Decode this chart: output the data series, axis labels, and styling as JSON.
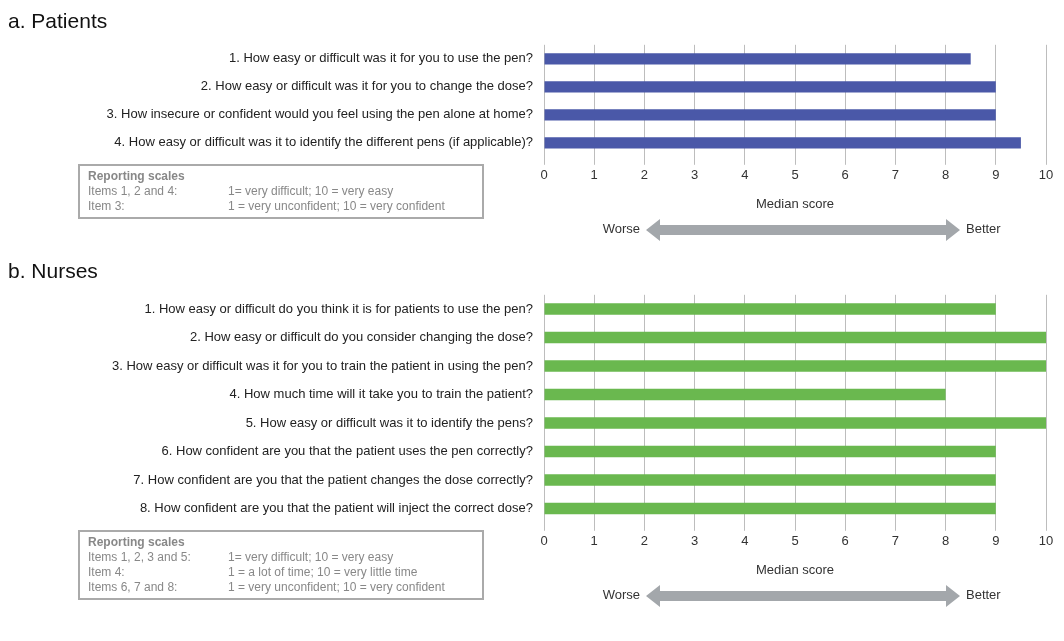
{
  "chart_data": [
    {
      "type": "bar",
      "orientation": "horizontal",
      "title": "a. Patients",
      "xlabel": "Median score",
      "categories": [
        "1. How easy or difficult was it for you to use the pen?",
        "2. How easy or difficult was it for you to change the dose?",
        "3. How insecure or confident would you feel using the pen alone at home?",
        "4. How easy or difficult was it to identify the different pens (if applicable)?"
      ],
      "values": [
        8.5,
        9,
        9,
        9.5
      ],
      "color": "#4a58a8",
      "xlim": [
        0,
        10
      ],
      "xticks": [
        0,
        1,
        2,
        3,
        4,
        5,
        6,
        7,
        8,
        9,
        10
      ],
      "grid": "x",
      "annotations": [
        "Reporting scales",
        "Items 1, 2 and 4:",
        "1= very difficult; 10 = very easy",
        "Item 3:",
        "1 = very unconfident; 10 = very confident",
        "Worse",
        "Better"
      ]
    },
    {
      "type": "bar",
      "orientation": "horizontal",
      "title": "b. Nurses",
      "xlabel": "Median score",
      "categories": [
        "1. How easy or difficult do you think it is for patients to use the pen?",
        "2. How easy or difficult do you consider changing the dose?",
        "3. How easy or difficult was it for you to train the patient in using the pen?",
        "4. How much time will it take you to train the patient?",
        "5. How easy or difficult was it to identify the pens?",
        "6. How confident are you that the patient uses the pen correctly?",
        "7. How confident are you that the patient changes the dose correctly?",
        "8. How confident are you that the patient will inject the correct dose?"
      ],
      "values": [
        9,
        10,
        10,
        8,
        10,
        9,
        9,
        9
      ],
      "color": "#6ab84f",
      "xlim": [
        0,
        10
      ],
      "xticks": [
        0,
        1,
        2,
        3,
        4,
        5,
        6,
        7,
        8,
        9,
        10
      ],
      "grid": "x",
      "annotations": [
        "Reporting scales",
        "Items 1, 2, 3 and 5:",
        "1= very difficult; 10 = very easy",
        "Item 4:",
        "1 = a lot of time; 10 = very little time",
        "Items 6, 7 and 8:",
        "1 = very unconfident; 10 = very confident",
        "Worse",
        "Better"
      ]
    }
  ]
}
